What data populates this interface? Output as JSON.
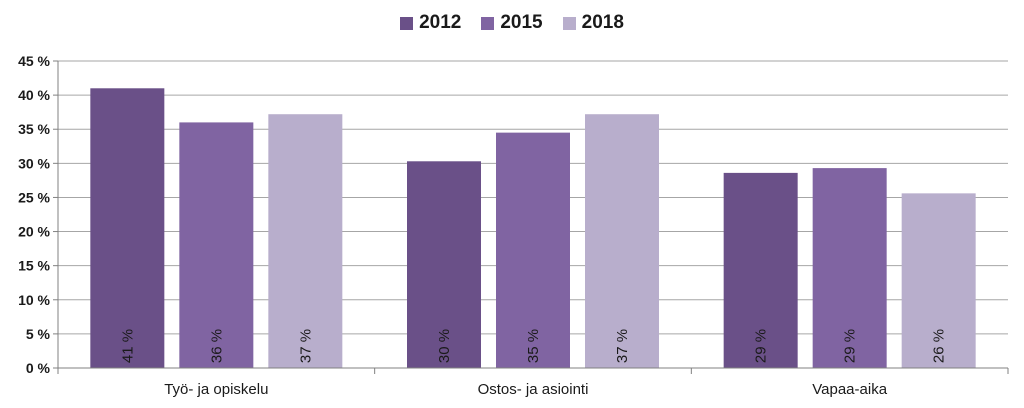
{
  "chart_data": {
    "type": "bar",
    "categories": [
      "Työ- ja opiskelu",
      "Ostos- ja asiointi",
      "Vapaa-aika"
    ],
    "series": [
      {
        "name": "2012",
        "values": [
          41,
          30,
          29
        ],
        "labels": [
          "41 %",
          "30 %",
          "29 %"
        ],
        "color": "#6a5088"
      },
      {
        "name": "2015",
        "values": [
          36,
          35,
          29
        ],
        "labels": [
          "36 %",
          "35 %",
          "29 %"
        ],
        "color": "#8064a2"
      },
      {
        "name": "2018",
        "values": [
          37,
          37,
          26
        ],
        "labels": [
          "37 %",
          "37 %",
          "26 %"
        ],
        "color": "#b8aecc"
      }
    ],
    "actual_values": [
      [
        41,
        30.3,
        28.6
      ],
      [
        36,
        34.5,
        29.3
      ],
      [
        37.2,
        37.2,
        25.6
      ]
    ],
    "yticks": [
      0,
      5,
      10,
      15,
      20,
      25,
      30,
      35,
      40,
      45
    ],
    "ytick_labels": [
      "0 %",
      "5 %",
      "10 %",
      "15 %",
      "20 %",
      "25 %",
      "30 %",
      "35 %",
      "40 %",
      "45 %"
    ],
    "ylim": [
      0,
      45
    ],
    "grid": true,
    "legend_position": "top-center",
    "gridline_color": "#a6a6a6",
    "axis_color": "#808080"
  }
}
